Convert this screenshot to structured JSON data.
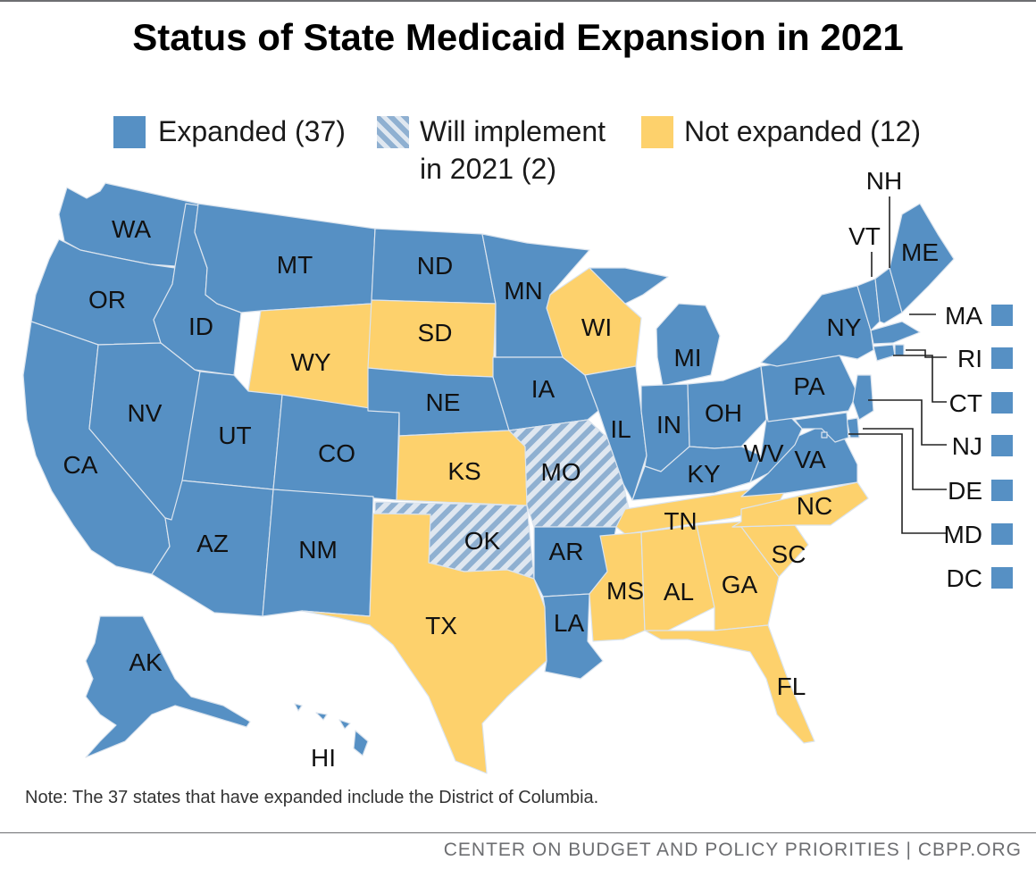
{
  "title": "Status of State Medicaid Expansion in 2021",
  "legend": {
    "expanded": "Expanded (37)",
    "will_implement_line1": "Will implement",
    "will_implement_line2": "in 2021 (2)",
    "not_expanded": "Not expanded (12)"
  },
  "colors": {
    "expanded": "#5690c4",
    "not_expanded": "#fdd16c",
    "will_implement_base": "#c9d6e3",
    "will_implement_stripe": "#8fb0d1",
    "border": "#d9e2ec"
  },
  "states": [
    {
      "code": "WA",
      "status": "expanded"
    },
    {
      "code": "OR",
      "status": "expanded"
    },
    {
      "code": "CA",
      "status": "expanded"
    },
    {
      "code": "ID",
      "status": "expanded"
    },
    {
      "code": "NV",
      "status": "expanded"
    },
    {
      "code": "MT",
      "status": "expanded"
    },
    {
      "code": "WY",
      "status": "not_expanded"
    },
    {
      "code": "UT",
      "status": "expanded"
    },
    {
      "code": "AZ",
      "status": "expanded"
    },
    {
      "code": "CO",
      "status": "expanded"
    },
    {
      "code": "NM",
      "status": "expanded"
    },
    {
      "code": "ND",
      "status": "expanded"
    },
    {
      "code": "SD",
      "status": "not_expanded"
    },
    {
      "code": "NE",
      "status": "expanded"
    },
    {
      "code": "KS",
      "status": "not_expanded"
    },
    {
      "code": "OK",
      "status": "will_implement"
    },
    {
      "code": "TX",
      "status": "not_expanded"
    },
    {
      "code": "MN",
      "status": "expanded"
    },
    {
      "code": "IA",
      "status": "expanded"
    },
    {
      "code": "MO",
      "status": "will_implement"
    },
    {
      "code": "AR",
      "status": "expanded"
    },
    {
      "code": "LA",
      "status": "expanded"
    },
    {
      "code": "WI",
      "status": "not_expanded"
    },
    {
      "code": "IL",
      "status": "expanded"
    },
    {
      "code": "MI",
      "status": "expanded"
    },
    {
      "code": "IN",
      "status": "expanded"
    },
    {
      "code": "OH",
      "status": "expanded"
    },
    {
      "code": "KY",
      "status": "expanded"
    },
    {
      "code": "TN",
      "status": "not_expanded"
    },
    {
      "code": "MS",
      "status": "not_expanded"
    },
    {
      "code": "AL",
      "status": "not_expanded"
    },
    {
      "code": "GA",
      "status": "not_expanded"
    },
    {
      "code": "FL",
      "status": "not_expanded"
    },
    {
      "code": "SC",
      "status": "not_expanded"
    },
    {
      "code": "NC",
      "status": "not_expanded"
    },
    {
      "code": "VA",
      "status": "expanded"
    },
    {
      "code": "WV",
      "status": "expanded"
    },
    {
      "code": "PA",
      "status": "expanded"
    },
    {
      "code": "NY",
      "status": "expanded"
    },
    {
      "code": "VT",
      "status": "expanded"
    },
    {
      "code": "NH",
      "status": "expanded"
    },
    {
      "code": "ME",
      "status": "expanded"
    },
    {
      "code": "AK",
      "status": "expanded"
    },
    {
      "code": "HI",
      "status": "expanded"
    }
  ],
  "small_states": [
    {
      "code": "MA",
      "status": "expanded"
    },
    {
      "code": "RI",
      "status": "expanded"
    },
    {
      "code": "CT",
      "status": "expanded"
    },
    {
      "code": "NJ",
      "status": "expanded"
    },
    {
      "code": "DE",
      "status": "expanded"
    },
    {
      "code": "MD",
      "status": "expanded"
    },
    {
      "code": "DC",
      "status": "expanded"
    }
  ],
  "note": "Note: The 37 states that have expanded include the District of Columbia.",
  "footer": "CENTER ON BUDGET AND POLICY PRIORITIES | CBPP.ORG"
}
